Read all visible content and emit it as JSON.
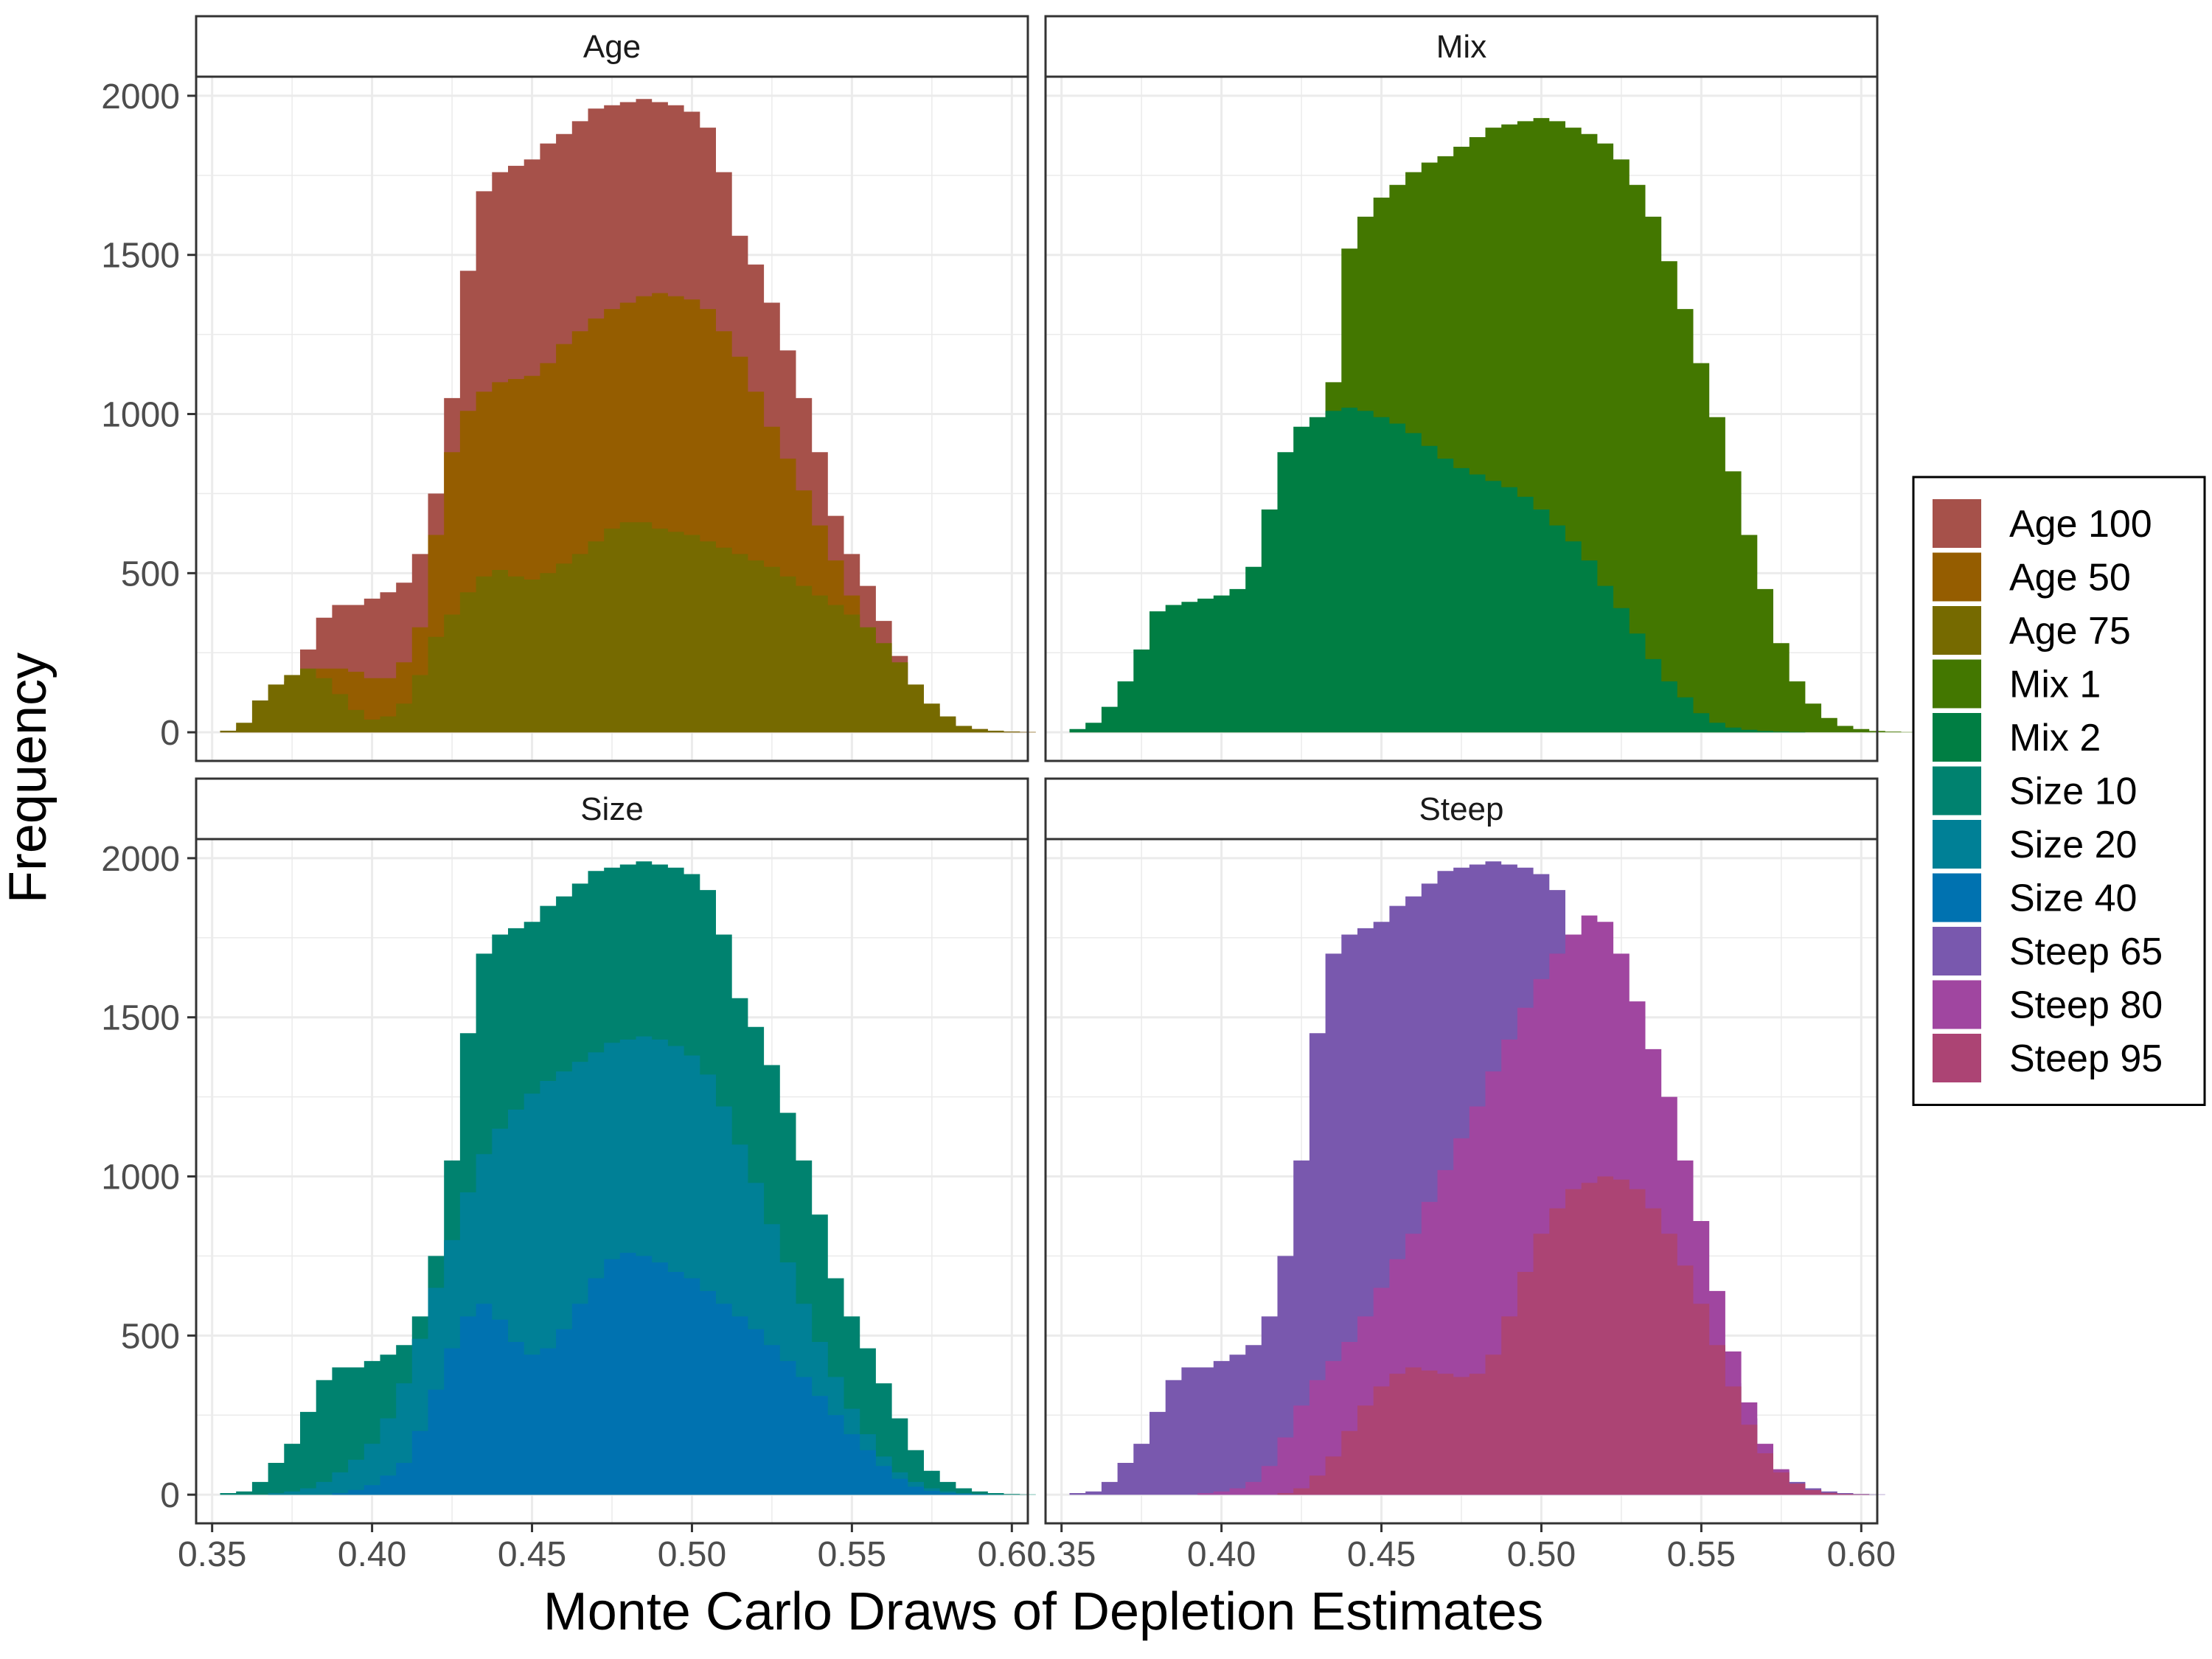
{
  "chart_data": {
    "type": "histogram",
    "xlabel": "Monte Carlo Draws of Depletion Estimates",
    "ylabel": "Frequency",
    "xlim": [
      0.345,
      0.605
    ],
    "ylim": [
      -90,
      2060
    ],
    "x_ticks": [
      0.35,
      0.4,
      0.45,
      0.5,
      0.55,
      0.6
    ],
    "x_tick_labels": [
      "0.35",
      "0.40",
      "0.45",
      "0.50",
      "0.55",
      "0.60"
    ],
    "y_ticks": [
      0,
      500,
      1000,
      1500,
      2000
    ],
    "y_tick_labels": [
      "0",
      "500",
      "1000",
      "1500",
      "2000"
    ],
    "grid": true,
    "bin_width": 0.005,
    "legend": {
      "position": "right",
      "entries": [
        {
          "label": "Age 100",
          "color": "#A6514A"
        },
        {
          "label": "Age 50",
          "color": "#955D00"
        },
        {
          "label": "Age 75",
          "color": "#766A00"
        },
        {
          "label": "Mix 1",
          "color": "#437700"
        },
        {
          "label": "Mix 2",
          "color": "#007E43"
        },
        {
          "label": "Size 10",
          "color": "#00826F"
        },
        {
          "label": "Size 20",
          "color": "#008096"
        },
        {
          "label": "Size 40",
          "color": "#0072B0"
        },
        {
          "label": "Steep 65",
          "color": "#7958AE"
        },
        {
          "label": "Steep 80",
          "color": "#A046A0"
        },
        {
          "label": "Steep 95",
          "color": "#AC4474"
        }
      ]
    },
    "panels": [
      {
        "title": "Age",
        "series": [
          {
            "name": "Age 100",
            "color": "#A6514A",
            "x_start": 0.355,
            "values": [
              5,
              10,
              40,
              100,
              160,
              260,
              360,
              400,
              400,
              420,
              440,
              470,
              560,
              750,
              1050,
              1450,
              1700,
              1760,
              1780,
              1800,
              1850,
              1880,
              1920,
              1960,
              1970,
              1980,
              1990,
              1980,
              1970,
              1950,
              1900,
              1760,
              1560,
              1470,
              1350,
              1200,
              1050,
              880,
              680,
              560,
              460,
              350,
              240,
              140,
              75,
              40,
              20,
              10,
              5,
              2,
              1
            ]
          },
          {
            "name": "Age 50",
            "color": "#955D00",
            "x_start": 0.355,
            "values": [
              3,
              6,
              20,
              55,
              100,
              160,
              200,
              200,
              190,
              170,
              170,
              220,
              330,
              620,
              880,
              1010,
              1070,
              1100,
              1110,
              1120,
              1160,
              1220,
              1260,
              1300,
              1330,
              1350,
              1370,
              1380,
              1370,
              1360,
              1330,
              1260,
              1180,
              1070,
              960,
              860,
              760,
              650,
              540,
              430,
              320,
              230,
              150,
              90,
              50,
              25,
              12,
              5,
              2,
              1,
              0
            ]
          },
          {
            "name": "Age 75",
            "color": "#766A00",
            "x_start": 0.355,
            "values": [
              5,
              30,
              100,
              150,
              180,
              200,
              170,
              120,
              70,
              40,
              50,
              90,
              180,
              300,
              370,
              440,
              490,
              510,
              490,
              480,
              500,
              530,
              560,
              600,
              640,
              660,
              660,
              640,
              630,
              620,
              600,
              580,
              560,
              540,
              520,
              490,
              460,
              430,
              400,
              370,
              330,
              280,
              220,
              150,
              90,
              50,
              20,
              10,
              5,
              2,
              1
            ]
          }
        ]
      },
      {
        "title": "Mix",
        "series": [
          {
            "name": "Mix 1",
            "color": "#437700",
            "x_start": 0.355,
            "values": [
              1,
              2,
              3,
              5,
              8,
              15,
              20,
              30,
              50,
              70,
              100,
              130,
              180,
              260,
              380,
              650,
              1100,
              1520,
              1620,
              1680,
              1720,
              1760,
              1790,
              1810,
              1840,
              1870,
              1900,
              1910,
              1920,
              1930,
              1920,
              1900,
              1880,
              1850,
              1800,
              1720,
              1620,
              1480,
              1330,
              1160,
              990,
              820,
              620,
              450,
              280,
              160,
              90,
              45,
              20,
              10,
              4,
              2,
              1
            ]
          },
          {
            "name": "Mix 2",
            "color": "#007E43",
            "x_start": 0.355,
            "values": [
              10,
              30,
              80,
              160,
              260,
              380,
              400,
              410,
              420,
              430,
              450,
              520,
              700,
              880,
              960,
              990,
              1010,
              1020,
              1010,
              990,
              970,
              940,
              900,
              860,
              830,
              810,
              790,
              770,
              740,
              700,
              650,
              600,
              540,
              460,
              390,
              310,
              230,
              160,
              110,
              60,
              30,
              15,
              8,
              4,
              2,
              1
            ]
          }
        ]
      },
      {
        "title": "Size",
        "series": [
          {
            "name": "Size 10",
            "color": "#00826F",
            "x_start": 0.355,
            "values": [
              5,
              10,
              40,
              100,
              160,
              260,
              360,
              400,
              400,
              420,
              440,
              470,
              560,
              750,
              1050,
              1450,
              1700,
              1760,
              1780,
              1800,
              1850,
              1880,
              1920,
              1960,
              1970,
              1980,
              1990,
              1980,
              1970,
              1950,
              1900,
              1760,
              1560,
              1470,
              1350,
              1200,
              1050,
              880,
              680,
              560,
              460,
              350,
              240,
              140,
              75,
              40,
              20,
              10,
              5,
              2,
              1
            ]
          },
          {
            "name": "Size 20",
            "color": "#008096",
            "x_start": 0.355,
            "values": [
              0,
              0,
              0,
              5,
              10,
              20,
              40,
              70,
              110,
              160,
              240,
              350,
              490,
              650,
              800,
              950,
              1070,
              1150,
              1210,
              1260,
              1300,
              1330,
              1360,
              1390,
              1420,
              1430,
              1440,
              1430,
              1410,
              1380,
              1320,
              1220,
              1100,
              980,
              850,
              730,
              600,
              480,
              370,
              270,
              190,
              120,
              70,
              40,
              20,
              10,
              5,
              2,
              1
            ]
          },
          {
            "name": "Size 40",
            "color": "#0072B0",
            "x_start": 0.355,
            "values": [
              0,
              0,
              0,
              0,
              0,
              0,
              0,
              5,
              15,
              30,
              60,
              100,
              200,
              330,
              460,
              560,
              600,
              550,
              480,
              440,
              460,
              520,
              600,
              680,
              740,
              760,
              750,
              730,
              700,
              680,
              640,
              600,
              560,
              520,
              470,
              420,
              370,
              310,
              250,
              190,
              140,
              90,
              50,
              25,
              12,
              5,
              2,
              1
            ]
          }
        ]
      },
      {
        "title": "Steep",
        "series": [
          {
            "name": "Steep 65",
            "color": "#7958AE",
            "x_start": 0.355,
            "values": [
              5,
              10,
              40,
              100,
              160,
              260,
              360,
              400,
              400,
              420,
              440,
              470,
              560,
              750,
              1050,
              1450,
              1700,
              1760,
              1780,
              1800,
              1850,
              1880,
              1920,
              1960,
              1970,
              1980,
              1990,
              1980,
              1970,
              1950,
              1900,
              1760,
              1560,
              1470,
              1350,
              1200,
              1050,
              880,
              680,
              560,
              460,
              350,
              240,
              140,
              75,
              40,
              20,
              10,
              5,
              2,
              1
            ]
          },
          {
            "name": "Steep 80",
            "color": "#A046A0",
            "x_start": 0.355,
            "values": [
              0,
              0,
              0,
              0,
              0,
              0,
              0,
              0,
              5,
              10,
              20,
              40,
              90,
              180,
              280,
              360,
              420,
              480,
              560,
              650,
              740,
              820,
              920,
              1020,
              1120,
              1220,
              1330,
              1430,
              1530,
              1620,
              1700,
              1760,
              1820,
              1800,
              1700,
              1550,
              1400,
              1250,
              1050,
              860,
              640,
              450,
              290,
              160,
              80,
              35,
              15,
              5,
              2,
              1
            ]
          },
          {
            "name": "Steep 95",
            "color": "#AC4474",
            "x_start": 0.355,
            "values": [
              0,
              0,
              0,
              0,
              0,
              0,
              0,
              0,
              0,
              0,
              0,
              0,
              0,
              5,
              20,
              60,
              120,
              200,
              280,
              340,
              380,
              400,
              390,
              380,
              370,
              380,
              440,
              560,
              700,
              820,
              900,
              960,
              980,
              1000,
              990,
              960,
              900,
              820,
              720,
              600,
              470,
              340,
              220,
              130,
              70,
              35,
              15,
              6,
              2,
              1
            ]
          }
        ]
      }
    ]
  }
}
